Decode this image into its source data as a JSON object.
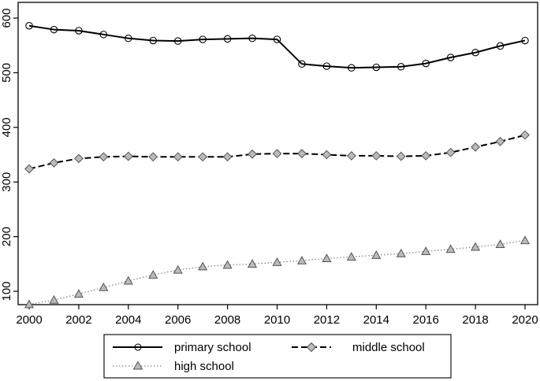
{
  "chart_data": {
    "type": "line",
    "title": "",
    "xlabel": "",
    "ylabel": "",
    "x": [
      2000,
      2001,
      2002,
      2003,
      2004,
      2005,
      2006,
      2007,
      2008,
      2009,
      2010,
      2011,
      2012,
      2013,
      2014,
      2015,
      2016,
      2017,
      2018,
      2019,
      2020
    ],
    "xlim": [
      2000,
      2020
    ],
    "ylim": [
      70,
      600
    ],
    "x_ticks": [
      2000,
      2002,
      2004,
      2006,
      2008,
      2010,
      2012,
      2014,
      2016,
      2018,
      2020
    ],
    "y_ticks": [
      100,
      200,
      300,
      400,
      500,
      600
    ],
    "grid": false,
    "legend_position": "bottom",
    "series": [
      {
        "name": "primary school",
        "line_style": "solid",
        "marker": "circle",
        "color": "#000000",
        "values": [
          586,
          579,
          577,
          570,
          563,
          559,
          558,
          561,
          562,
          563,
          561,
          516,
          512,
          509,
          510,
          511,
          517,
          528,
          537,
          549,
          559
        ]
      },
      {
        "name": "middle school",
        "line_style": "dashed",
        "marker": "diamond",
        "color": "#000000",
        "values": [
          324,
          335,
          343,
          346,
          347,
          346,
          346,
          346,
          346,
          351,
          352,
          352,
          350,
          348,
          348,
          347,
          348,
          354,
          364,
          374,
          386
        ]
      },
      {
        "name": "high school",
        "line_style": "dotted",
        "marker": "triangle",
        "color": "#777777",
        "values": [
          76,
          84,
          95,
          107,
          119,
          130,
          139,
          145,
          148,
          150,
          153,
          156,
          160,
          163,
          166,
          169,
          173,
          177,
          181,
          186,
          193
        ]
      }
    ]
  }
}
